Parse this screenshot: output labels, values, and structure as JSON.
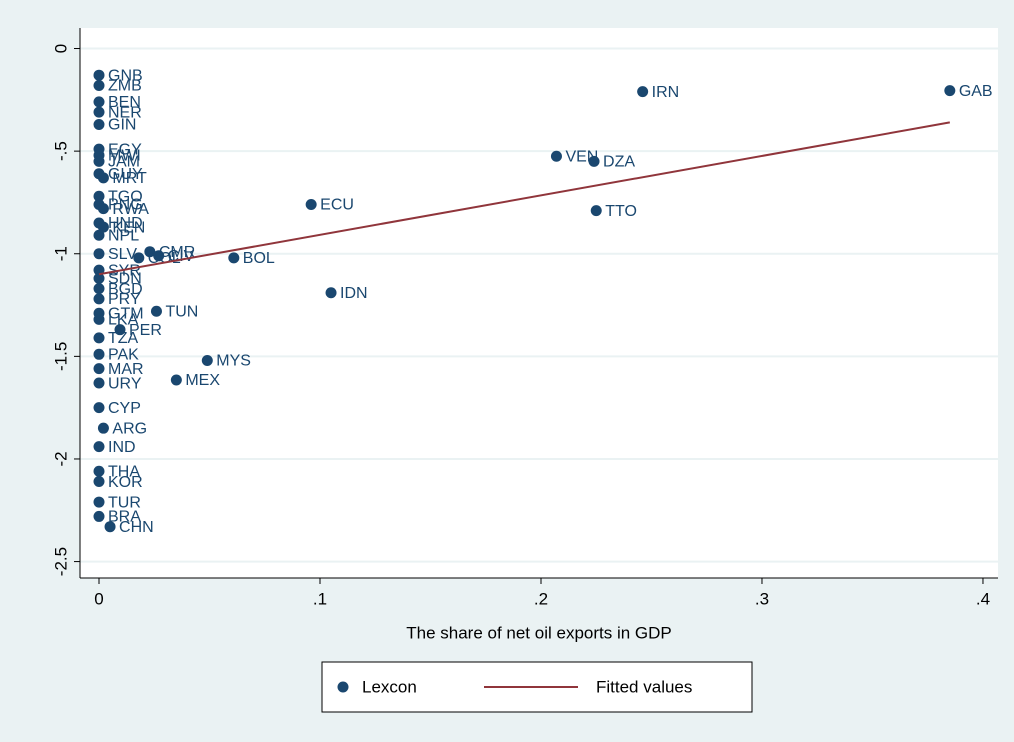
{
  "chart_data": {
    "type": "scatter",
    "x_label": "The share of net oil exports in GDP",
    "xlim": [
      -0.0086,
      0.4068
    ],
    "ylim": [
      -2.58,
      0.1
    ],
    "xticks": [
      0,
      {
        "value": 0.1,
        "label": ".1"
      },
      {
        "value": 0.2,
        "label": ".2"
      },
      {
        "value": 0.3,
        "label": ".3"
      },
      {
        "value": 0.4,
        "label": ".4"
      }
    ],
    "yticks": [
      0,
      {
        "value": -0.5,
        "label": "-.5"
      },
      -1,
      {
        "value": -1.5,
        "label": "-1.5"
      },
      -2,
      {
        "value": -2.5,
        "label": "-2.5"
      }
    ],
    "grid": true,
    "series": [
      {
        "name": "Lexcon",
        "color": "#1a476f",
        "labels": [
          "GNB",
          "ZMB",
          "BEN",
          "NER",
          "GIN",
          "EGY",
          "MWI",
          "JAM",
          "GUY",
          "MRT",
          "TGO",
          "PNG",
          "RWA",
          "HND",
          "KEN",
          "NPL",
          "SLV",
          "CMR",
          "COL",
          "CIV",
          "BOL",
          "ECU",
          "IDN",
          "IRN",
          "GAB",
          "VEN",
          "DZA",
          "TTO",
          "SYR",
          "SDN",
          "BGD",
          "PRY",
          "TUN",
          "GTM",
          "LKA",
          "PER",
          "TZA",
          "PAK",
          "MAR",
          "URY",
          "CYP",
          "ARG",
          "IND",
          "THA",
          "KOR",
          "TUR",
          "BRA",
          "CHN",
          "MYS",
          "MEX"
        ],
        "x": [
          0,
          0,
          0,
          0,
          0,
          0,
          0,
          0,
          0,
          0.002,
          0,
          0,
          0.002,
          0,
          0.002,
          0,
          0,
          0.023,
          0.018,
          0.027,
          0.061,
          0.096,
          0.105,
          0.246,
          0.385,
          0.207,
          0.224,
          0.225,
          0,
          0,
          0,
          0,
          0.026,
          0,
          0,
          0.0095,
          0,
          0,
          0,
          0,
          0,
          0.002,
          0,
          0,
          0,
          0,
          0,
          0.005,
          0.049,
          0.035
        ],
        "values": [
          -0.13,
          -0.18,
          -0.26,
          -0.31,
          -0.37,
          -0.49,
          -0.52,
          -0.55,
          -0.61,
          -0.63,
          -0.72,
          -0.76,
          -0.78,
          -0.85,
          -0.87,
          -0.91,
          -1.0,
          -0.99,
          -1.02,
          -1.01,
          -1.02,
          -0.76,
          -1.19,
          -0.21,
          -0.205,
          -0.525,
          -0.55,
          -0.79,
          -1.08,
          -1.12,
          -1.17,
          -1.22,
          -1.28,
          -1.29,
          -1.32,
          -1.37,
          -1.41,
          -1.49,
          -1.56,
          -1.63,
          -1.75,
          -1.85,
          -1.94,
          -2.06,
          -2.11,
          -2.21,
          -2.28,
          -2.33,
          -1.52,
          -1.615
        ]
      },
      {
        "name": "Fitted values",
        "color": "#90353b",
        "type": "line",
        "x": [
          0,
          0.385
        ],
        "values": [
          -1.1,
          -0.36
        ]
      }
    ]
  }
}
